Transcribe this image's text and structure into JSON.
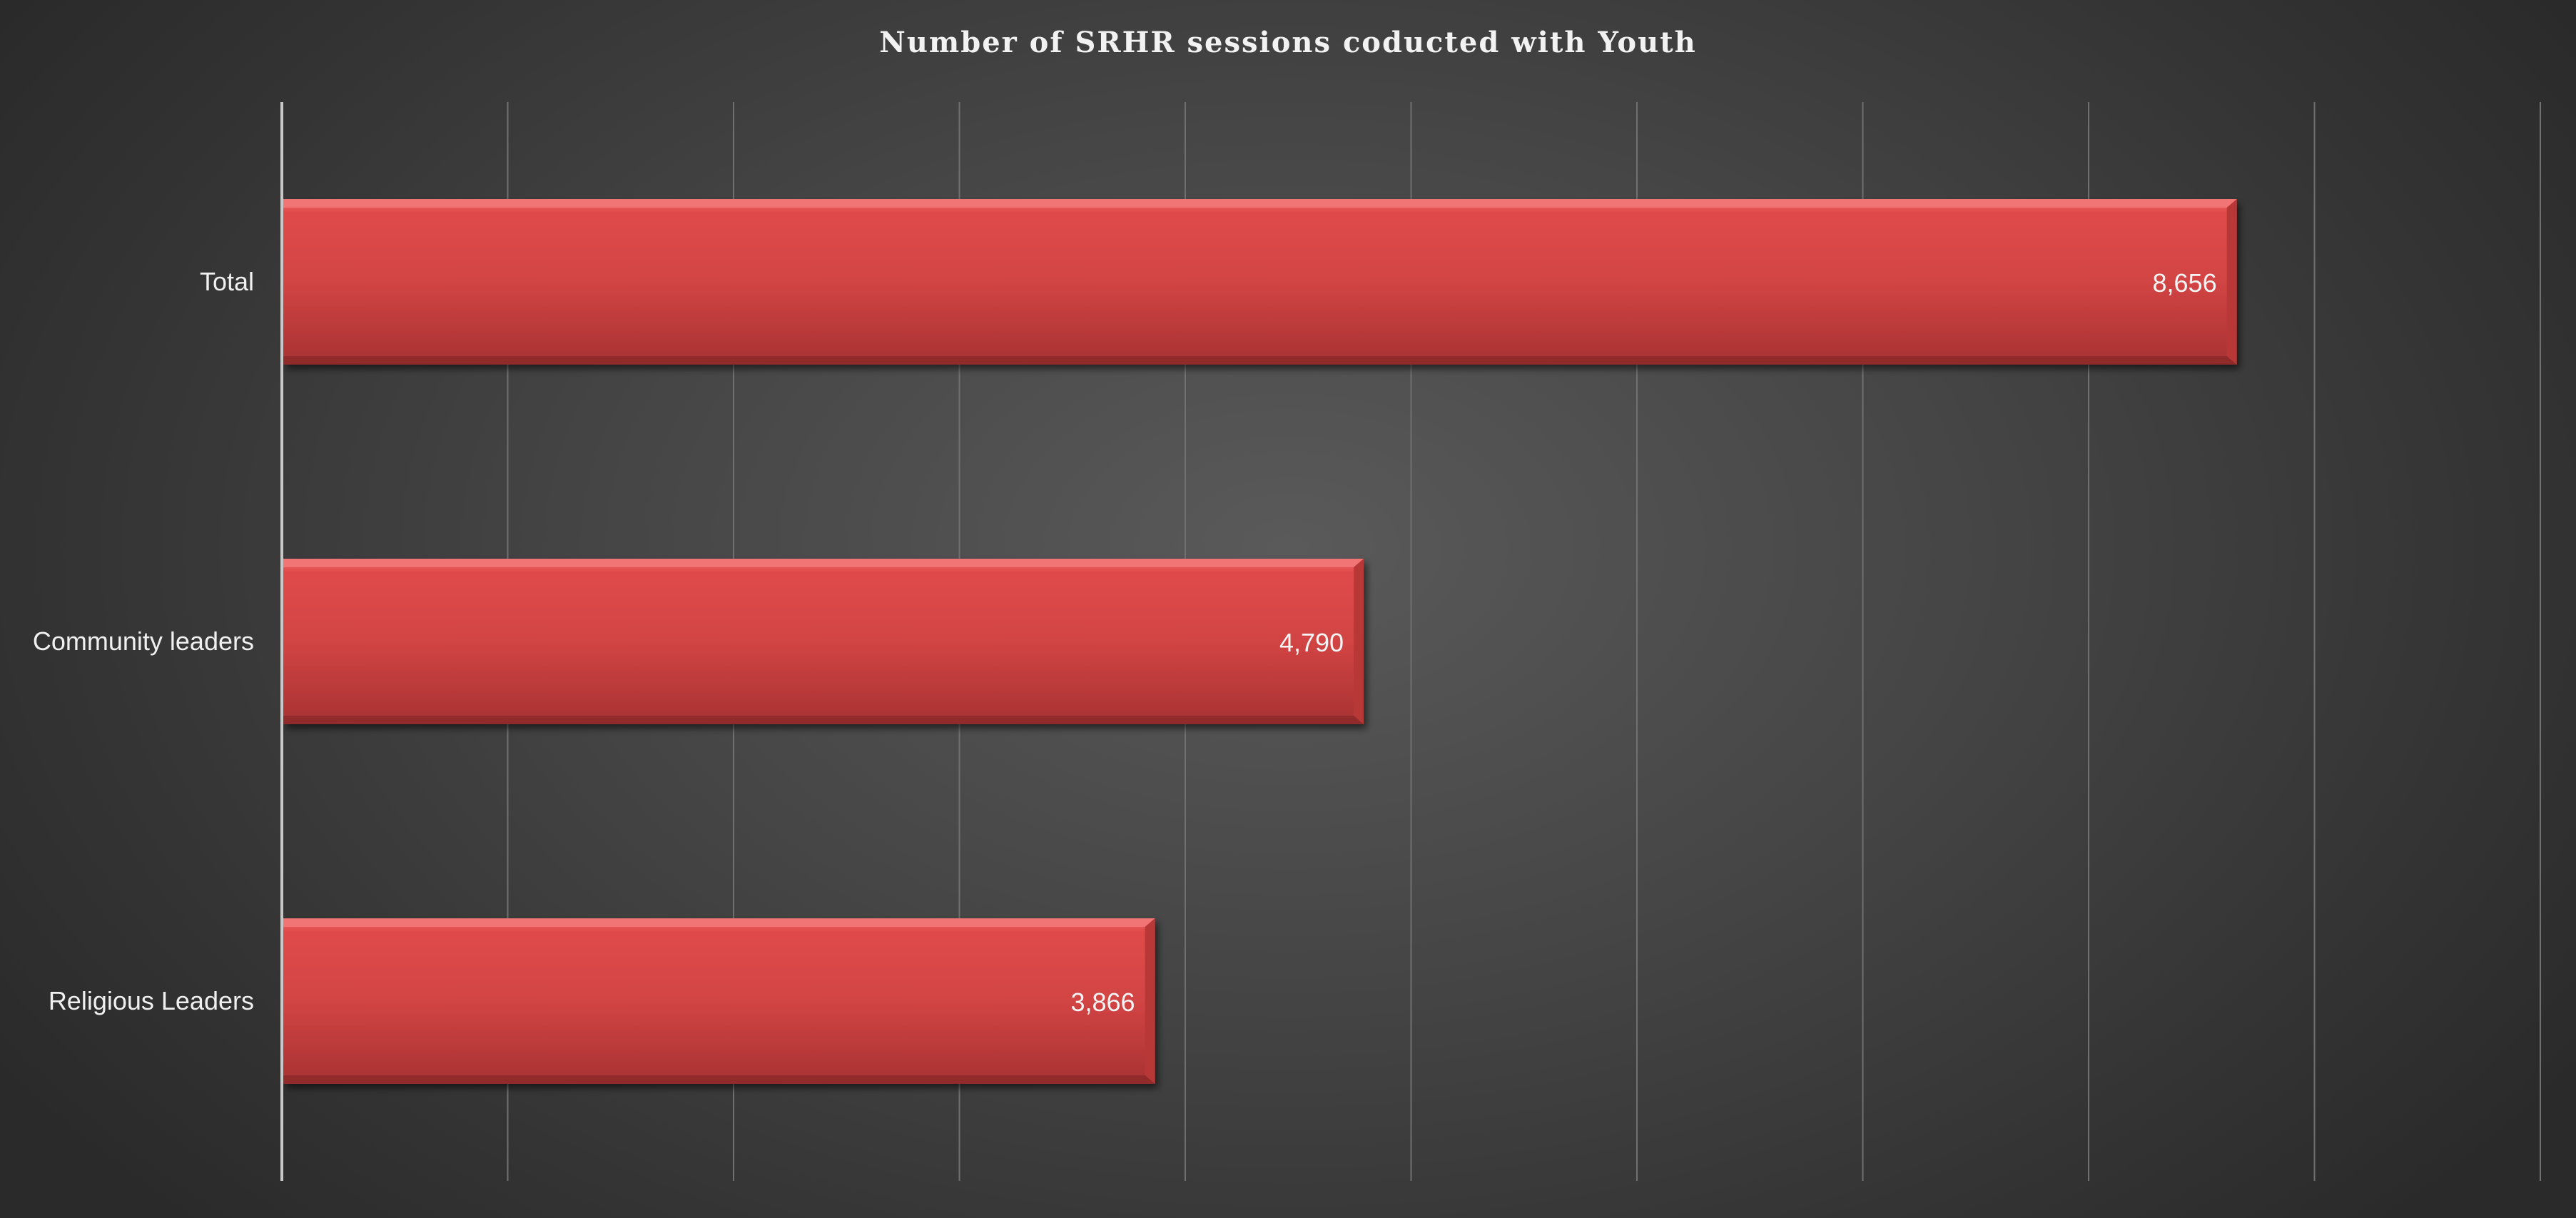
{
  "chart_data": {
    "type": "bar",
    "orientation": "horizontal",
    "title": "Number of SRHR sessions coducted with Youth",
    "categories": [
      "Total",
      "Community leaders",
      "Religious Leaders"
    ],
    "values": [
      8656,
      4790,
      3866
    ],
    "value_labels": [
      "8,656",
      "4,790",
      "3,866"
    ],
    "xlim": [
      0,
      10000
    ],
    "x_grid_step": 1000,
    "grid": true,
    "legend": "none",
    "xlabel": "",
    "ylabel": "",
    "colors": {
      "bar": "#d84545",
      "bar_top": "#f06a6a",
      "bar_bottom": "#a83232",
      "gridline": "#707070",
      "axis": "#c8c8c8",
      "text": "#f0f0f0"
    }
  }
}
